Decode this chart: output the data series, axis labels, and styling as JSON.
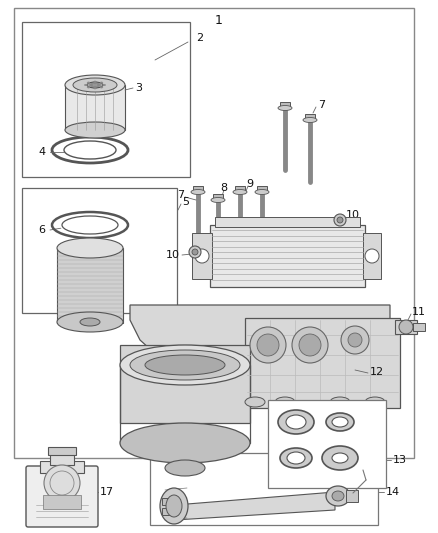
{
  "bg": "#ffffff",
  "figsize": [
    4.38,
    5.33
  ],
  "dpi": 100,
  "line_color": "#333333",
  "gray_light": "#cccccc",
  "gray_mid": "#999999",
  "gray_dark": "#555555"
}
